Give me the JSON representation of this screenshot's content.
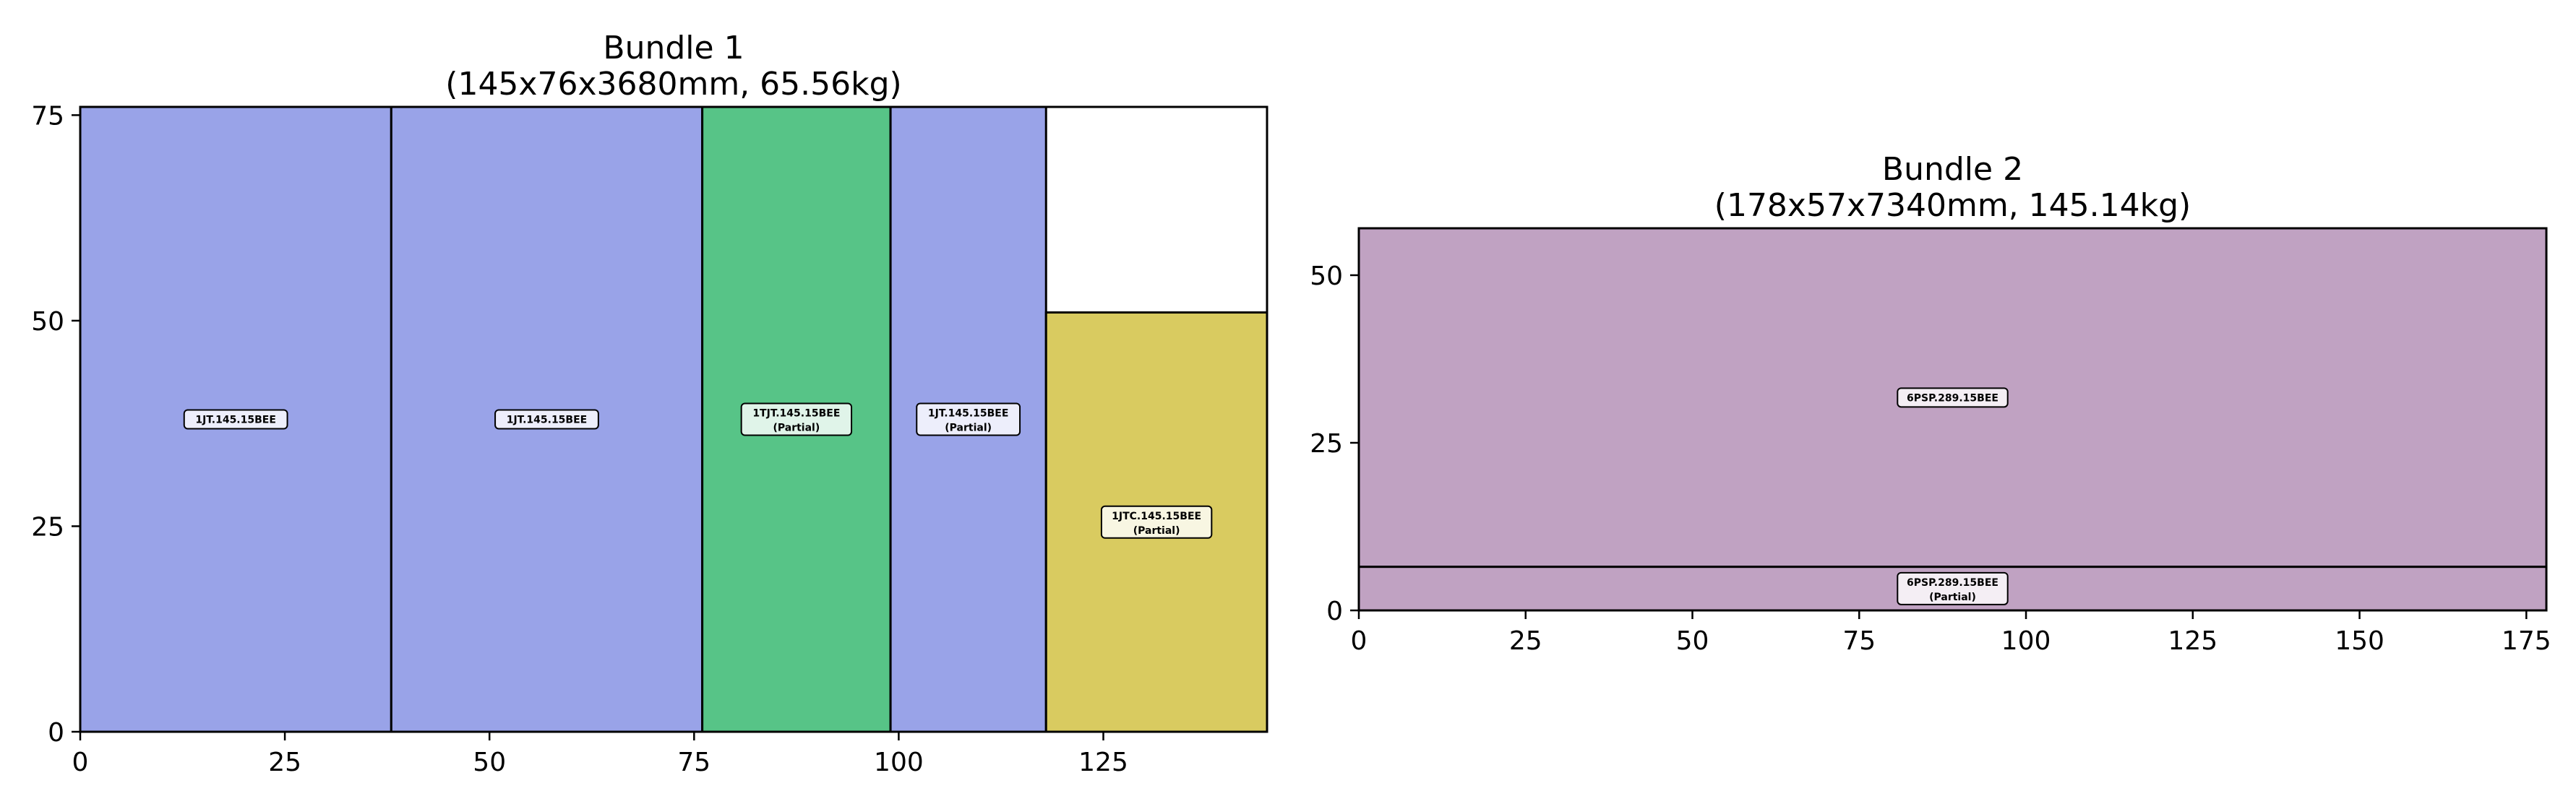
{
  "chart_data": [
    {
      "type": "packing-layout",
      "title": "Bundle 1",
      "subtitle": "(145x76x3680mm, 65.56kg)",
      "xlim": [
        0,
        145
      ],
      "ylim": [
        0,
        76
      ],
      "xticks": [
        "0",
        "25",
        "50",
        "75",
        "100",
        "125"
      ],
      "yticks": [
        "0",
        "25",
        "50",
        "75"
      ],
      "pieces": [
        {
          "x": 0,
          "y": 0,
          "w": 38,
          "h": 76,
          "color": "#99a3e8",
          "label": "1JT.145.15BEE",
          "note": ""
        },
        {
          "x": 38,
          "y": 0,
          "w": 38,
          "h": 76,
          "color": "#99a3e8",
          "label": "1JT.145.15BEE",
          "note": ""
        },
        {
          "x": 76,
          "y": 0,
          "w": 23,
          "h": 76,
          "color": "#57c487",
          "label": "1TJT.145.15BEE",
          "note": "(Partial)"
        },
        {
          "x": 99,
          "y": 0,
          "w": 19,
          "h": 76,
          "color": "#99a3e8",
          "label": "1JT.145.15BEE",
          "note": "(Partial)"
        },
        {
          "x": 118,
          "y": 0,
          "w": 27,
          "h": 51,
          "color": "#d9cb60",
          "label": "1JTC.145.15BEE",
          "note": "(Partial)"
        }
      ]
    },
    {
      "type": "packing-layout",
      "title": "Bundle 2",
      "subtitle": "(178x57x7340mm, 145.14kg)",
      "xlim": [
        0,
        178
      ],
      "ylim": [
        0,
        57
      ],
      "xticks": [
        "0",
        "25",
        "50",
        "75",
        "100",
        "125",
        "150",
        "175"
      ],
      "yticks": [
        "0",
        "25",
        "50"
      ],
      "pieces": [
        {
          "x": 0,
          "y": 6.5,
          "w": 178,
          "h": 50.5,
          "color": "#c0a2c2",
          "label": "6PSP.289.15BEE",
          "note": ""
        },
        {
          "x": 0,
          "y": 0,
          "w": 178,
          "h": 6.5,
          "color": "#c0a2c2",
          "label": "6PSP.289.15BEE",
          "note": "(Partial)"
        }
      ]
    }
  ]
}
